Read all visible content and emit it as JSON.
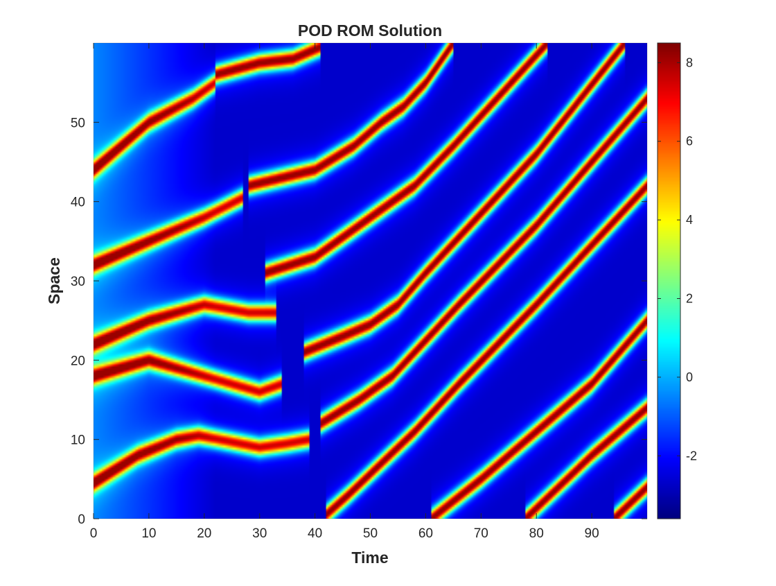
{
  "chart_data": {
    "type": "heatmap",
    "title": "POD ROM Solution",
    "xlabel": "Time",
    "ylabel": "Space",
    "xlim": [
      0,
      100
    ],
    "ylim": [
      0,
      60
    ],
    "xticks": [
      "0",
      "10",
      "20",
      "30",
      "40",
      "50",
      "60",
      "70",
      "80",
      "90"
    ],
    "yticks": [
      "0",
      "10",
      "20",
      "30",
      "40",
      "50"
    ],
    "colorbar": {
      "colormap": "jet",
      "range": [
        -3.6,
        8.5
      ],
      "ticks": [
        "-2",
        "0",
        "2",
        "4",
        "6",
        "8"
      ]
    },
    "background_value": -2.7,
    "ridges": [
      {
        "peak": 6.5,
        "path": [
          [
            0,
            4.5
          ],
          [
            8,
            8
          ],
          [
            15,
            10
          ],
          [
            19,
            10.5
          ],
          [
            30,
            9
          ],
          [
            35,
            9.5
          ],
          [
            39,
            10
          ]
        ]
      },
      {
        "peak": 6.5,
        "path": [
          [
            0,
            18
          ],
          [
            10,
            20
          ],
          [
            20,
            18
          ],
          [
            30,
            16
          ],
          [
            34,
            17
          ]
        ]
      },
      {
        "peak": 6.5,
        "path": [
          [
            0,
            22
          ],
          [
            10,
            25
          ],
          [
            20,
            27
          ],
          [
            28,
            26
          ],
          [
            33,
            26
          ]
        ]
      },
      {
        "peak": 6.5,
        "path": [
          [
            0,
            32
          ],
          [
            10,
            35
          ],
          [
            20,
            38
          ],
          [
            27,
            40.5
          ]
        ]
      },
      {
        "peak": 6.5,
        "path": [
          [
            0,
            44
          ],
          [
            10,
            50
          ],
          [
            18,
            53
          ],
          [
            22,
            55
          ]
        ]
      },
      {
        "peak": 7.5,
        "path": [
          [
            22,
            56
          ],
          [
            30,
            57.5
          ],
          [
            36,
            58
          ],
          [
            41,
            59.5
          ]
        ]
      },
      {
        "peak": 7.5,
        "path": [
          [
            28,
            42
          ],
          [
            40,
            44
          ],
          [
            47,
            47
          ],
          [
            52,
            50
          ],
          [
            56,
            52
          ],
          [
            60,
            55
          ],
          [
            65,
            60
          ]
        ]
      },
      {
        "peak": 7.5,
        "path": [
          [
            31,
            31
          ],
          [
            40,
            33
          ],
          [
            48,
            37
          ],
          [
            54,
            40
          ],
          [
            58,
            42
          ],
          [
            65,
            47
          ],
          [
            82,
            60
          ]
        ]
      },
      {
        "peak": 7.5,
        "path": [
          [
            38,
            21
          ],
          [
            45,
            23
          ],
          [
            50,
            24.5
          ],
          [
            55,
            27
          ],
          [
            60,
            31
          ],
          [
            70,
            38.5
          ],
          [
            80,
            46
          ],
          [
            96,
            60
          ]
        ]
      },
      {
        "peak": 7.5,
        "path": [
          [
            41,
            12
          ],
          [
            48,
            15
          ],
          [
            54,
            18
          ],
          [
            58,
            21
          ],
          [
            66,
            27
          ],
          [
            80,
            37
          ],
          [
            100,
            53
          ]
        ]
      },
      {
        "peak": 7.5,
        "path": [
          [
            42,
            0.5
          ],
          [
            46,
            3
          ],
          [
            52,
            7
          ],
          [
            58,
            11
          ],
          [
            66,
            17
          ],
          [
            80,
            27
          ],
          [
            100,
            42
          ]
        ]
      },
      {
        "peak": 7.5,
        "path": [
          [
            61,
            0
          ],
          [
            70,
            5
          ],
          [
            80,
            11
          ],
          [
            90,
            17
          ],
          [
            100,
            25
          ]
        ]
      },
      {
        "peak": 7.5,
        "path": [
          [
            78,
            0
          ],
          [
            90,
            8
          ],
          [
            100,
            14
          ]
        ]
      },
      {
        "peak": 7.5,
        "path": [
          [
            94,
            0
          ],
          [
            100,
            4
          ]
        ]
      }
    ]
  }
}
